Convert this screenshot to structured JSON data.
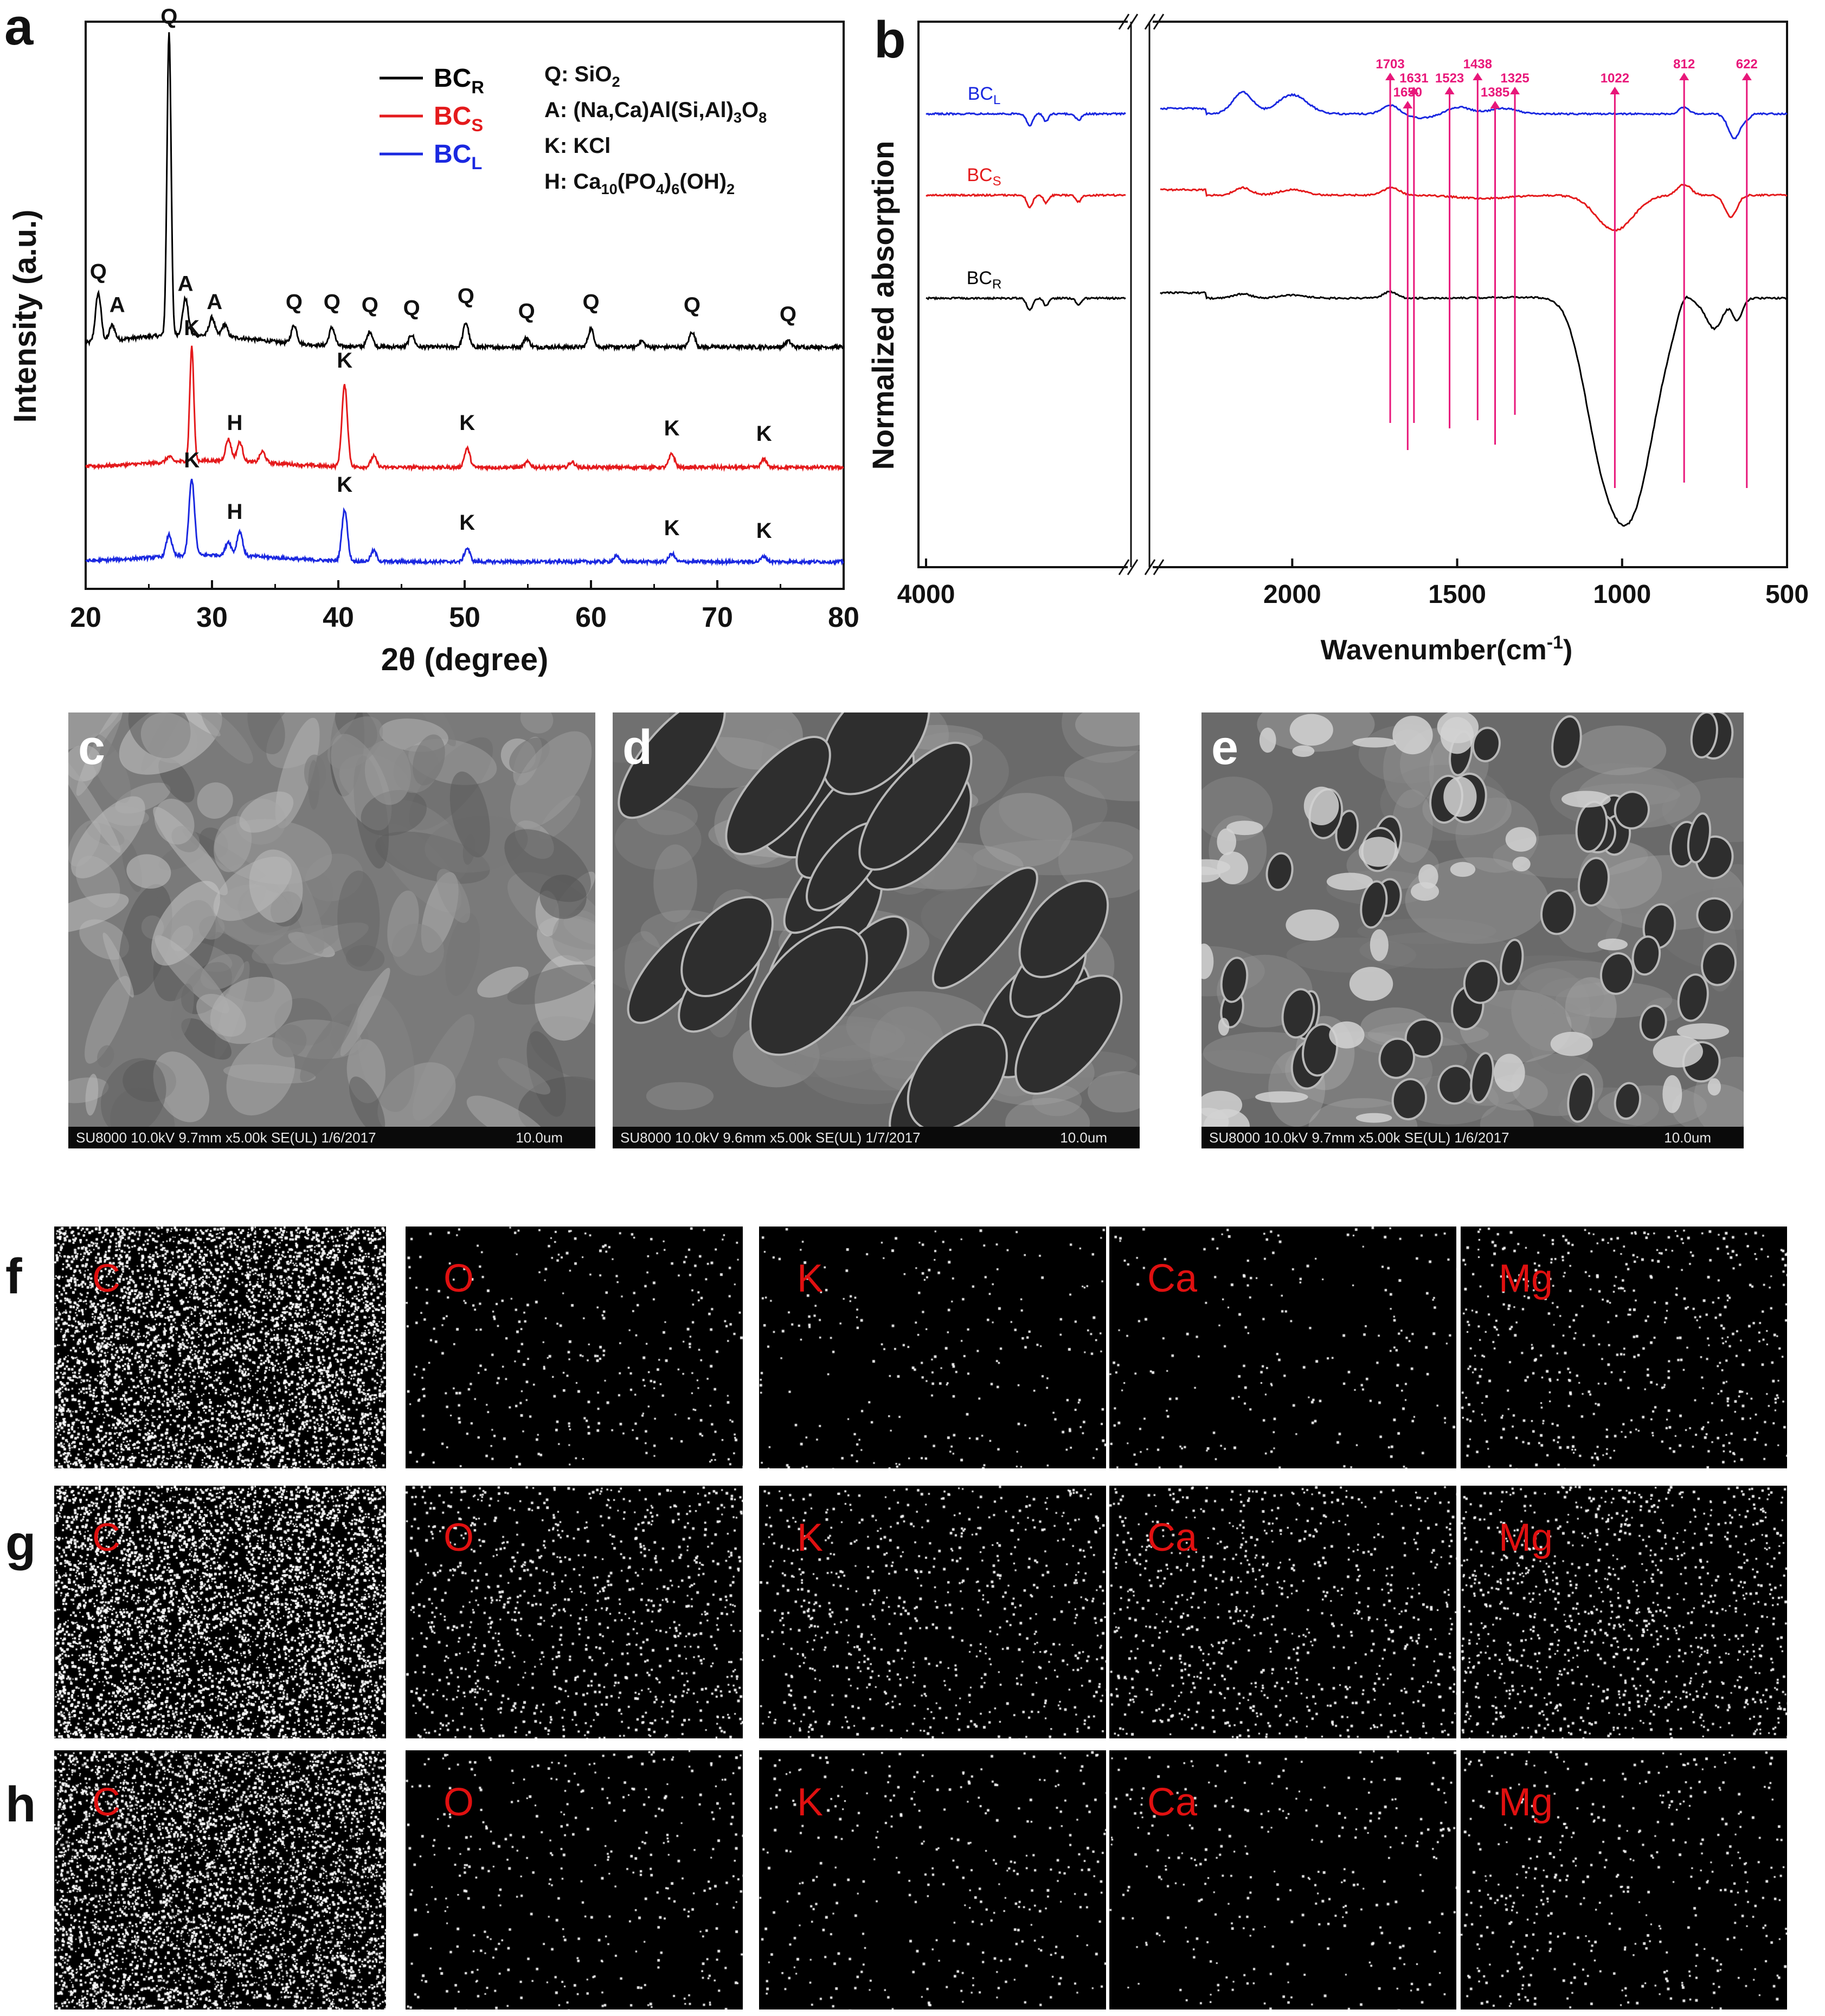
{
  "panels": {
    "a": "a",
    "b": "b",
    "c": "c",
    "d": "d",
    "e": "e",
    "f": "f",
    "g": "g",
    "h": "h"
  },
  "chart_data": [
    {
      "id": "a",
      "type": "line",
      "xlabel": "2θ (degree)",
      "ylabel": "Intensity (a.u.)",
      "xlim": [
        20,
        80
      ],
      "xticks": [
        "20",
        "30",
        "40",
        "50",
        "60",
        "70",
        "80"
      ],
      "legend_placement": "top-center",
      "series": [
        {
          "name": "BC",
          "sub": "R",
          "color": "#000000",
          "peaks": [
            [
              21.0,
              0.16
            ],
            [
              22.1,
              0.05
            ],
            [
              26.6,
              1.0
            ],
            [
              27.9,
              0.12
            ],
            [
              30.0,
              0.06
            ],
            [
              31.0,
              0.04
            ],
            [
              36.5,
              0.06
            ],
            [
              39.5,
              0.06
            ],
            [
              42.5,
              0.05
            ],
            [
              45.8,
              0.04
            ],
            [
              50.1,
              0.08
            ],
            [
              54.9,
              0.03
            ],
            [
              60.0,
              0.06
            ],
            [
              64.0,
              0.02
            ],
            [
              68.0,
              0.05
            ],
            [
              75.6,
              0.02
            ]
          ]
        },
        {
          "name": "BC",
          "sub": "S",
          "color": "#e41a1c",
          "peaks": [
            [
              26.6,
              0.02
            ],
            [
              28.4,
              0.42
            ],
            [
              31.3,
              0.08
            ],
            [
              32.2,
              0.07
            ],
            [
              34.0,
              0.04
            ],
            [
              40.5,
              0.3
            ],
            [
              42.8,
              0.04
            ],
            [
              50.2,
              0.07
            ],
            [
              55.0,
              0.02
            ],
            [
              58.5,
              0.02
            ],
            [
              66.4,
              0.05
            ],
            [
              73.7,
              0.03
            ]
          ]
        },
        {
          "name": "BC",
          "sub": "L",
          "color": "#1a28e0",
          "peaks": [
            [
              26.6,
              0.08
            ],
            [
              28.4,
              0.28
            ],
            [
              31.3,
              0.05
            ],
            [
              32.2,
              0.09
            ],
            [
              40.5,
              0.19
            ],
            [
              42.8,
              0.04
            ],
            [
              50.2,
              0.05
            ],
            [
              62.0,
              0.02
            ],
            [
              66.4,
              0.03
            ],
            [
              73.7,
              0.02
            ]
          ]
        }
      ],
      "annotations": [
        {
          "text": "Q",
          "x": 26.6,
          "series": 0
        },
        {
          "text": "Q",
          "x": 21.0,
          "series": 0
        },
        {
          "text": "A",
          "x": 22.5,
          "series": 0
        },
        {
          "text": "A",
          "x": 27.9,
          "series": 0
        },
        {
          "text": "A",
          "x": 30.2,
          "series": 0
        },
        {
          "text": "Q",
          "x": 36.5,
          "series": 0
        },
        {
          "text": "Q",
          "x": 39.5,
          "series": 0
        },
        {
          "text": "Q",
          "x": 42.5,
          "series": 0
        },
        {
          "text": "Q",
          "x": 45.8,
          "series": 0
        },
        {
          "text": "Q",
          "x": 50.1,
          "series": 0
        },
        {
          "text": "Q",
          "x": 54.9,
          "series": 0
        },
        {
          "text": "Q",
          "x": 60.0,
          "series": 0
        },
        {
          "text": "Q",
          "x": 68.0,
          "series": 0
        },
        {
          "text": "Q",
          "x": 75.6,
          "series": 0
        },
        {
          "text": "K",
          "x": 28.4,
          "series": 1
        },
        {
          "text": "H",
          "x": 31.8,
          "series": 1
        },
        {
          "text": "K",
          "x": 40.5,
          "series": 1
        },
        {
          "text": "K",
          "x": 50.2,
          "series": 1
        },
        {
          "text": "K",
          "x": 66.4,
          "series": 1
        },
        {
          "text": "K",
          "x": 73.7,
          "series": 1
        },
        {
          "text": "K",
          "x": 28.4,
          "series": 2
        },
        {
          "text": "H",
          "x": 31.8,
          "series": 2
        },
        {
          "text": "K",
          "x": 40.5,
          "series": 2
        },
        {
          "text": "K",
          "x": 50.2,
          "series": 2
        },
        {
          "text": "K",
          "x": 66.4,
          "series": 2
        },
        {
          "text": "K",
          "x": 73.7,
          "series": 2
        }
      ],
      "phase_key": [
        {
          "label": "Q: SiO",
          "sub": "2",
          "rest": ""
        },
        {
          "label": "A: (Na,Ca)Al(Si,Al)",
          "sub": "3",
          "rest": "O",
          "sub2": "8"
        },
        {
          "label": "K: KCl",
          "sub": "",
          "rest": ""
        },
        {
          "label": "H: Ca",
          "sub": "10",
          "rest": "(PO",
          "sub2": "4",
          "rest2": ")",
          "sub3": "6",
          "rest3": "(OH)",
          "sub4": "2"
        }
      ]
    },
    {
      "id": "b",
      "type": "line",
      "xlabel": "Wavenumber(cm",
      "xlabel_sup": "-1",
      "xlabel_end": ")",
      "ylabel": "Normalized absorption",
      "xticks": [
        "4000",
        "2000",
        "1500",
        "1000",
        "500"
      ],
      "axis_break": true,
      "series": [
        {
          "name": "BC",
          "sub": "L",
          "color": "#1a28e0"
        },
        {
          "name": "BC",
          "sub": "S",
          "color": "#e41a1c"
        },
        {
          "name": "BC",
          "sub": "R",
          "color": "#000000"
        }
      ],
      "peak_markers": [
        {
          "label": "1703",
          "x": 1703,
          "level": 0
        },
        {
          "label": "1650",
          "x": 1650,
          "level": 2
        },
        {
          "label": "1631",
          "x": 1631,
          "level": 1
        },
        {
          "label": "1523",
          "x": 1523,
          "level": 1
        },
        {
          "label": "1438",
          "x": 1438,
          "level": 0
        },
        {
          "label": "1385",
          "x": 1385,
          "level": 2
        },
        {
          "label": "1325",
          "x": 1325,
          "level": 1
        },
        {
          "label": "1022",
          "x": 1022,
          "level": 1
        },
        {
          "label": "812",
          "x": 812,
          "level": 0
        },
        {
          "label": "622",
          "x": 622,
          "level": 0
        }
      ],
      "marker_color": "#e8177a"
    }
  ],
  "sem": {
    "c": {
      "info": "SU8000 10.0kV 9.7mm x5.00k SE(UL) 1/6/2017",
      "scale": "10.0um"
    },
    "d": {
      "info": "SU8000 10.0kV 9.6mm x5.00k SE(UL) 1/7/2017",
      "scale": "10.0um"
    },
    "e": {
      "info": "SU8000 10.0kV 9.7mm x5.00k SE(UL) 1/6/2017",
      "scale": "10.0um"
    }
  },
  "maps": {
    "elements": [
      "C",
      "O",
      "K",
      "Ca",
      "Mg"
    ],
    "text_color": "#e01010",
    "density": {
      "f": [
        0.9,
        0.12,
        0.08,
        0.07,
        0.18
      ],
      "g": [
        0.95,
        0.32,
        0.22,
        0.25,
        0.35
      ],
      "h": [
        0.7,
        0.12,
        0.1,
        0.09,
        0.14
      ]
    }
  }
}
